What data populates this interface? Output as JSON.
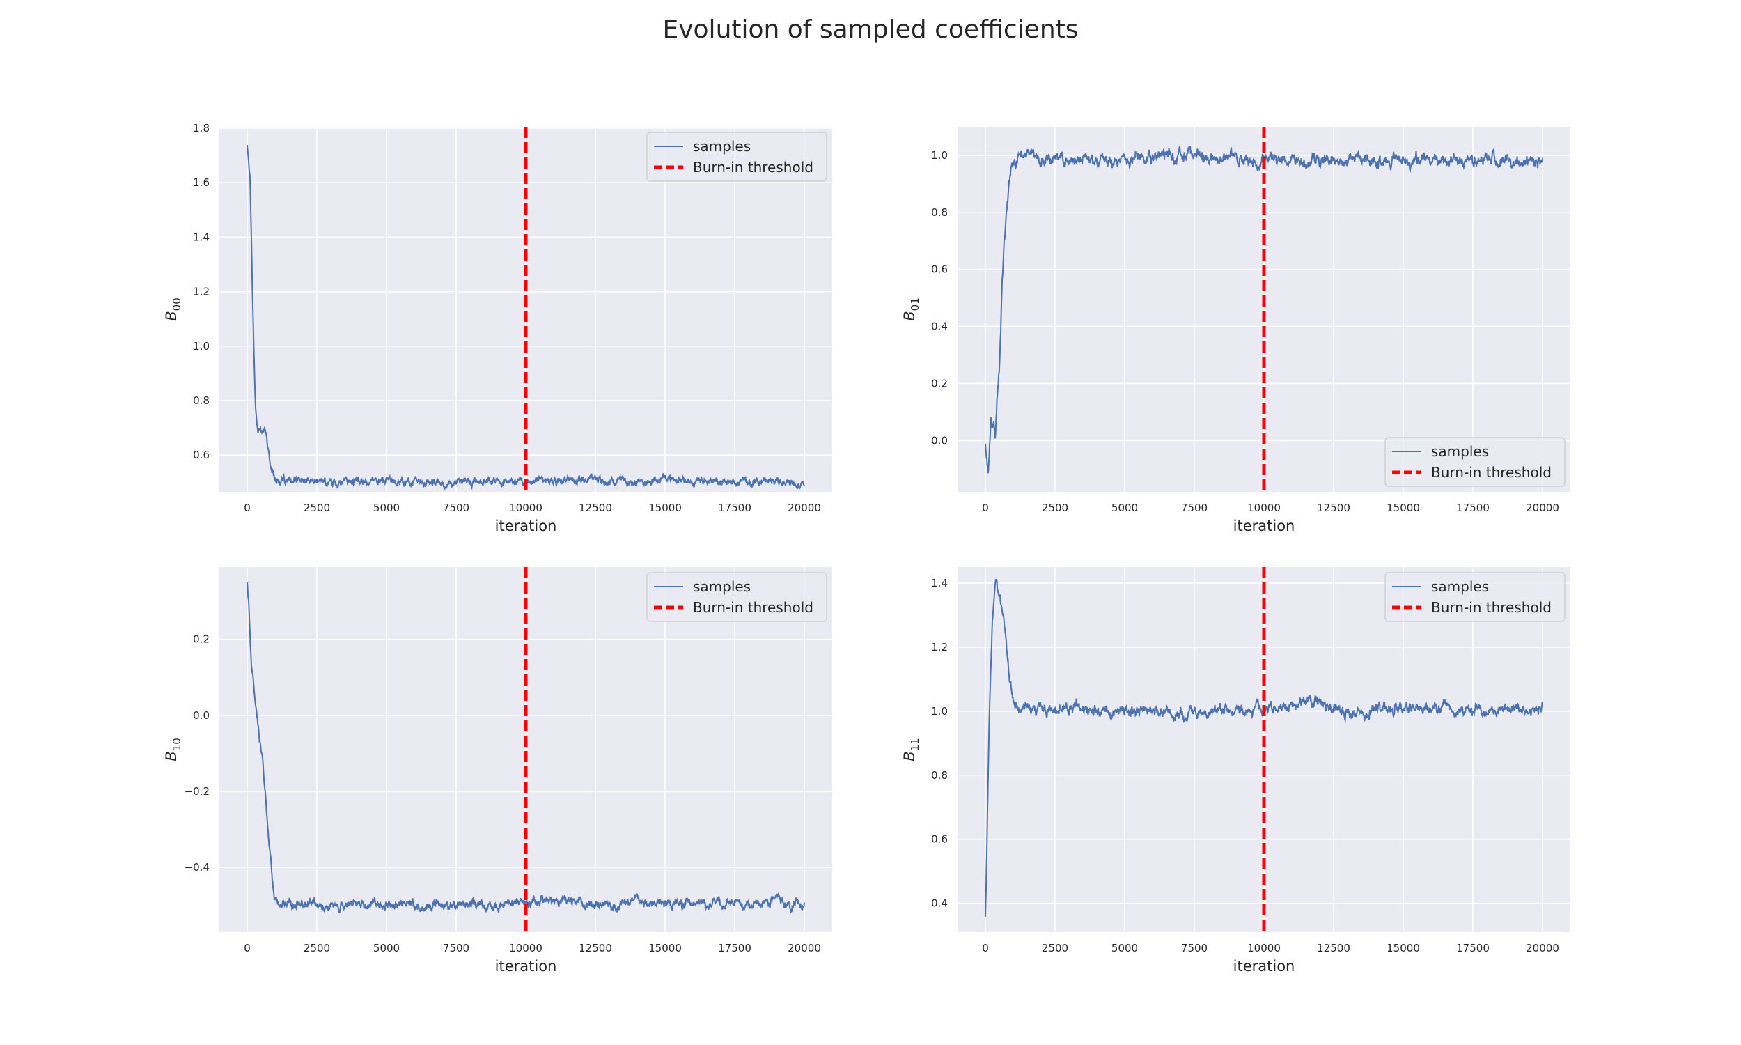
{
  "figure": {
    "title": "Evolution of sampled coefficients"
  },
  "colors": {
    "background": "#eaeaf2",
    "grid": "#ffffff",
    "samples": "#4c72b0",
    "threshold": "#ff0000",
    "legend_border": "#cccccc"
  },
  "legend": {
    "samples_label": "samples",
    "threshold_label": "Burn-in threshold"
  },
  "chart_data": [
    {
      "type": "line",
      "panel": "top-left",
      "ylabel_base": "B",
      "ylabel_sub": "00",
      "xlabel": "iteration",
      "xlim": [
        -1000,
        21000
      ],
      "ylim": [
        0.465,
        1.805
      ],
      "xticks": [
        0,
        2500,
        5000,
        7500,
        10000,
        12500,
        15000,
        17500,
        20000
      ],
      "xtick_labels": [
        "0",
        "2500",
        "5000",
        "7500",
        "10000",
        "12500",
        "15000",
        "17500",
        "20000"
      ],
      "yticks": [
        0.6,
        0.8,
        1.0,
        1.2,
        1.4,
        1.6,
        1.8
      ],
      "ytick_labels": [
        "0.6",
        "0.8",
        "1.0",
        "1.2",
        "1.4",
        "1.6",
        "1.8"
      ],
      "grid": true,
      "legend_position": "upper right",
      "burn_in": 10000,
      "series": [
        {
          "name": "samples",
          "x": [
            0,
            50,
            100,
            150,
            200,
            250,
            300,
            350,
            400,
            450,
            500,
            550,
            600,
            650,
            700,
            750,
            800,
            900,
            1000,
            1100,
            1200,
            1400,
            2000,
            3000,
            4000,
            5000,
            6000,
            7000,
            8000,
            9000,
            10000,
            11000,
            12000,
            12500,
            13000,
            14000,
            14500,
            15000,
            16000,
            17000,
            18000,
            19000,
            20000
          ],
          "y": [
            1.74,
            1.68,
            1.62,
            1.4,
            1.15,
            0.95,
            0.78,
            0.71,
            0.69,
            0.7,
            0.68,
            0.69,
            0.7,
            0.68,
            0.66,
            0.62,
            0.58,
            0.54,
            0.52,
            0.51,
            0.505,
            0.5,
            0.505,
            0.5,
            0.505,
            0.51,
            0.5,
            0.495,
            0.5,
            0.505,
            0.505,
            0.505,
            0.51,
            0.515,
            0.505,
            0.5,
            0.51,
            0.515,
            0.505,
            0.505,
            0.5,
            0.505,
            0.5
          ],
          "noise": 0.009
        }
      ]
    },
    {
      "type": "line",
      "panel": "top-right",
      "ylabel_base": "B",
      "ylabel_sub": "01",
      "xlabel": "iteration",
      "xlim": [
        -1000,
        21000
      ],
      "ylim": [
        -0.18,
        1.1
      ],
      "xticks": [
        0,
        2500,
        5000,
        7500,
        10000,
        12500,
        15000,
        17500,
        20000
      ],
      "xtick_labels": [
        "0",
        "2500",
        "5000",
        "7500",
        "10000",
        "12500",
        "15000",
        "17500",
        "20000"
      ],
      "yticks": [
        0.0,
        0.2,
        0.4,
        0.6,
        0.8,
        1.0
      ],
      "ytick_labels": [
        "0.0",
        "0.2",
        "0.4",
        "0.6",
        "0.8",
        "1.0"
      ],
      "grid": true,
      "legend_position": "lower right",
      "burn_in": 10000,
      "series": [
        {
          "name": "samples",
          "x": [
            0,
            50,
            100,
            150,
            200,
            250,
            300,
            350,
            400,
            450,
            500,
            550,
            600,
            650,
            700,
            750,
            800,
            850,
            900,
            950,
            1000,
            1100,
            1200,
            1300,
            1500,
            2000,
            3000,
            4000,
            5000,
            6000,
            7000,
            8000,
            9000,
            10000,
            11000,
            12000,
            13000,
            14000,
            15000,
            16000,
            17000,
            18000,
            19000,
            20000
          ],
          "y": [
            0.0,
            -0.05,
            -0.12,
            -0.02,
            0.07,
            0.02,
            0.05,
            0.0,
            0.1,
            0.2,
            0.27,
            0.4,
            0.55,
            0.65,
            0.72,
            0.8,
            0.85,
            0.9,
            0.92,
            0.95,
            0.97,
            0.98,
            0.99,
            1.0,
            0.99,
            0.99,
            0.99,
            0.98,
            0.985,
            0.99,
            1.0,
            0.995,
            0.99,
            0.985,
            0.985,
            0.98,
            0.99,
            0.975,
            0.985,
            0.98,
            0.985,
            0.98,
            0.985,
            0.985
          ],
          "noise": 0.014
        }
      ]
    },
    {
      "type": "line",
      "panel": "bottom-left",
      "ylabel_base": "B",
      "ylabel_sub": "10",
      "xlabel": "iteration",
      "xlim": [
        -1000,
        21000
      ],
      "ylim": [
        -0.57,
        0.39
      ],
      "xticks": [
        0,
        2500,
        5000,
        7500,
        10000,
        12500,
        15000,
        17500,
        20000
      ],
      "xtick_labels": [
        "0",
        "2500",
        "5000",
        "7500",
        "10000",
        "12500",
        "15000",
        "17500",
        "20000"
      ],
      "yticks": [
        -0.4,
        -0.2,
        0.0,
        0.2
      ],
      "ytick_labels": [
        "−0.4",
        "−0.2",
        "0.0",
        "0.2"
      ],
      "grid": true,
      "legend_position": "upper right",
      "burn_in": 10000,
      "series": [
        {
          "name": "samples",
          "x": [
            0,
            50,
            100,
            150,
            200,
            250,
            300,
            350,
            400,
            450,
            500,
            550,
            600,
            650,
            700,
            750,
            800,
            850,
            900,
            950,
            1000,
            1100,
            1200,
            1400,
            2000,
            3000,
            4000,
            5000,
            6000,
            7000,
            8000,
            9000,
            10000,
            11000,
            11600,
            12000,
            13000,
            14000,
            15000,
            16000,
            17000,
            18000,
            19000,
            20000
          ],
          "y": [
            0.34,
            0.3,
            0.22,
            0.14,
            0.1,
            0.06,
            0.03,
            0.0,
            -0.03,
            -0.06,
            -0.09,
            -0.12,
            -0.16,
            -0.2,
            -0.25,
            -0.3,
            -0.35,
            -0.39,
            -0.43,
            -0.46,
            -0.48,
            -0.49,
            -0.495,
            -0.5,
            -0.495,
            -0.5,
            -0.495,
            -0.49,
            -0.5,
            -0.5,
            -0.495,
            -0.5,
            -0.49,
            -0.49,
            -0.48,
            -0.49,
            -0.5,
            -0.49,
            -0.495,
            -0.49,
            -0.495,
            -0.5,
            -0.49,
            -0.495
          ],
          "noise": 0.008
        }
      ]
    },
    {
      "type": "line",
      "panel": "bottom-right",
      "ylabel_base": "B",
      "ylabel_sub": "11",
      "xlabel": "iteration",
      "xlim": [
        -1000,
        21000
      ],
      "ylim": [
        0.31,
        1.45
      ],
      "xticks": [
        0,
        2500,
        5000,
        7500,
        10000,
        12500,
        15000,
        17500,
        20000
      ],
      "xtick_labels": [
        "0",
        "2500",
        "5000",
        "7500",
        "10000",
        "12500",
        "15000",
        "17500",
        "20000"
      ],
      "yticks": [
        0.4,
        0.6,
        0.8,
        1.0,
        1.2,
        1.4
      ],
      "ytick_labels": [
        "0.4",
        "0.6",
        "0.8",
        "1.0",
        "1.2",
        "1.4"
      ],
      "grid": true,
      "legend_position": "upper right",
      "burn_in": 10000,
      "series": [
        {
          "name": "samples",
          "x": [
            0,
            50,
            100,
            150,
            200,
            250,
            300,
            350,
            400,
            450,
            500,
            550,
            600,
            650,
            700,
            750,
            800,
            850,
            900,
            950,
            1000,
            1100,
            1200,
            1400,
            2000,
            3000,
            4000,
            5000,
            6000,
            7000,
            8000,
            9000,
            10000,
            11000,
            11700,
            12000,
            13000,
            14000,
            15000,
            16000,
            17000,
            18000,
            19000,
            20000
          ],
          "y": [
            0.35,
            0.55,
            0.8,
            1.0,
            1.15,
            1.28,
            1.35,
            1.39,
            1.4,
            1.38,
            1.36,
            1.34,
            1.32,
            1.29,
            1.25,
            1.2,
            1.15,
            1.1,
            1.07,
            1.04,
            1.02,
            1.01,
            1.0,
            1.01,
            1.0,
            1.01,
            1.0,
            1.005,
            1.0,
            0.995,
            1.005,
            1.0,
            1.0,
            1.01,
            1.04,
            1.01,
            1.0,
            1.01,
            1.01,
            1.02,
            1.0,
            1.005,
            1.01,
            1.0
          ],
          "noise": 0.012
        }
      ]
    }
  ]
}
